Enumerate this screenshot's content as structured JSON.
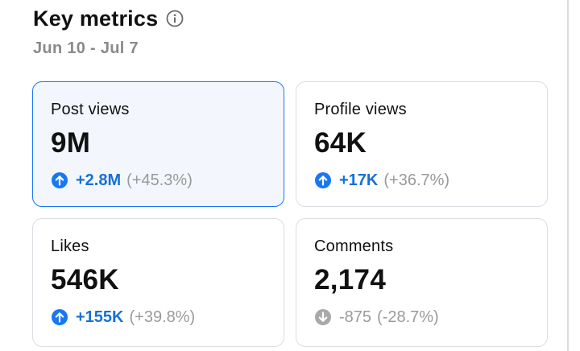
{
  "header": {
    "title": "Key metrics",
    "date_range": "Jun 10 - Jul 7"
  },
  "colors": {
    "accent_blue": "#1877f2",
    "up_text": "#1870d5",
    "muted_gray": "#9a9a9a",
    "selected_bg": "#f3f7fd"
  },
  "metrics": [
    {
      "label": "Post views",
      "value": "9M",
      "delta": "+2.8M",
      "delta_pct": "(+45.3%)",
      "trend": "up",
      "icon": "arrow-up-circle-icon",
      "selected": true
    },
    {
      "label": "Profile views",
      "value": "64K",
      "delta": "+17K",
      "delta_pct": "(+36.7%)",
      "trend": "up",
      "icon": "arrow-up-circle-icon",
      "selected": false
    },
    {
      "label": "Likes",
      "value": "546K",
      "delta": "+155K",
      "delta_pct": "(+39.8%)",
      "trend": "up",
      "icon": "arrow-up-circle-icon",
      "selected": false
    },
    {
      "label": "Comments",
      "value": "2,174",
      "delta": "-875",
      "delta_pct": "(-28.7%)",
      "trend": "down",
      "icon": "arrow-down-circle-icon",
      "selected": false
    }
  ]
}
